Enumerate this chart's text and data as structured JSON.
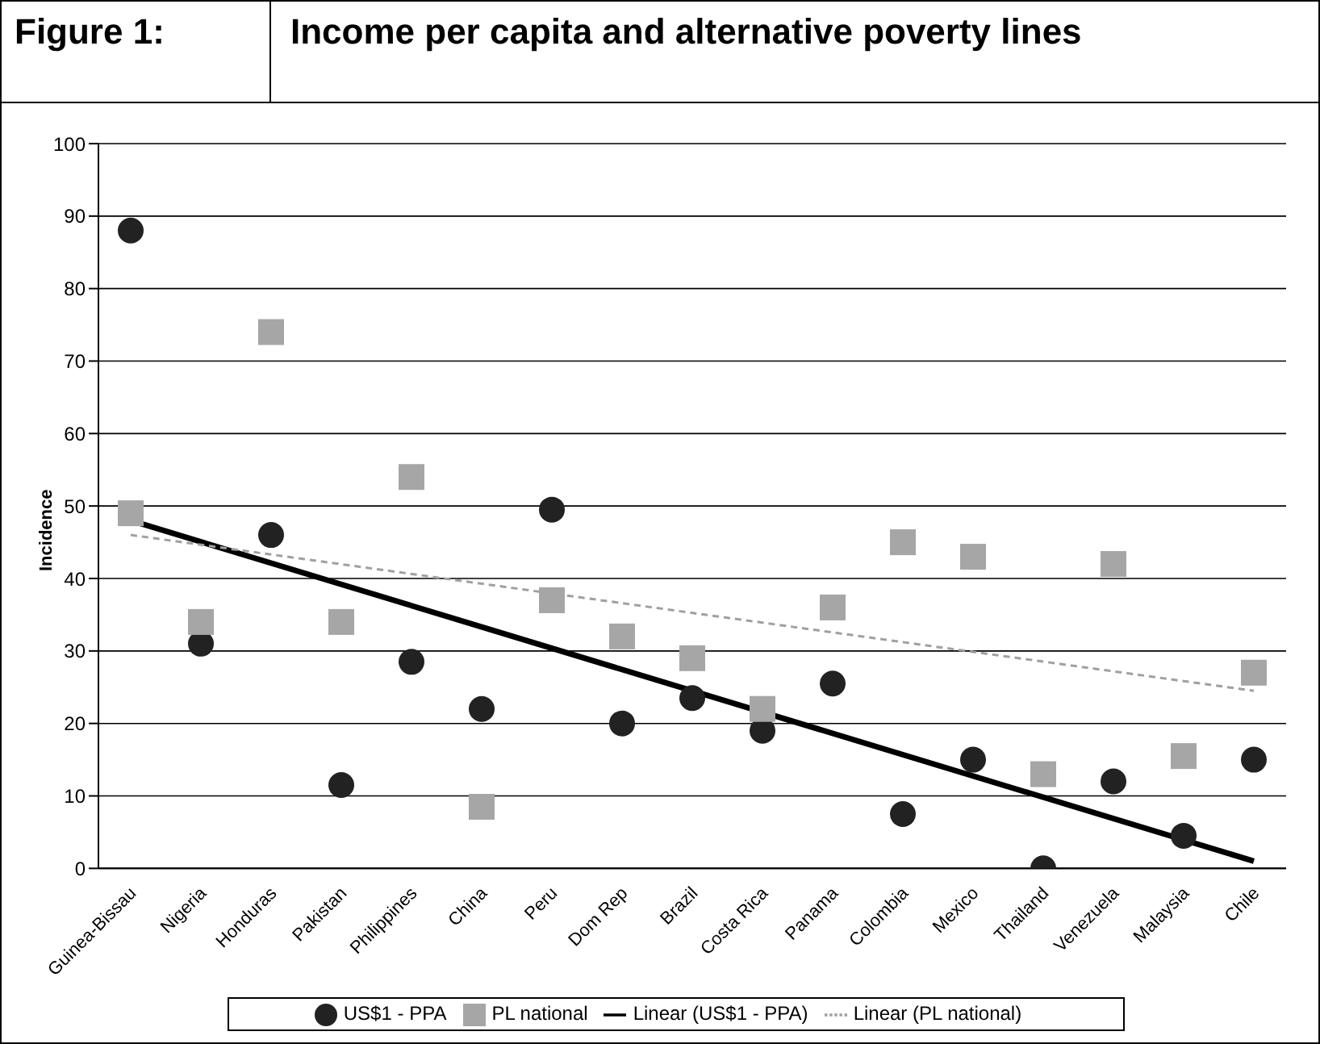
{
  "chart_data": {
    "type": "scatter",
    "title": "Income per capita and alternative poverty lines",
    "annotations": [
      "Figure 1:"
    ],
    "ylabel": "Incidence",
    "categories": [
      "Guinea-Bissau",
      "Nigeria",
      "Honduras",
      "Pakistan",
      "Philippines",
      "China",
      "Peru",
      "Dom Rep",
      "Brazil",
      "Costa Rica",
      "Panama",
      "Colombia",
      "Mexico",
      "Thailand",
      "Venezuela",
      "Malaysia",
      "Chile"
    ],
    "series": [
      {
        "name": "US$1 - PPA",
        "marker": "circle",
        "color": "#222222",
        "values": [
          88,
          31,
          46,
          11.5,
          28.5,
          22,
          49.5,
          20,
          23.5,
          19,
          25.5,
          7.5,
          15,
          0,
          12,
          4.5,
          15
        ]
      },
      {
        "name": "PL national",
        "marker": "square",
        "color": "#a6a6a6",
        "values": [
          49,
          34,
          74,
          34,
          54,
          8.5,
          37,
          32,
          29,
          22,
          36,
          45,
          43,
          13,
          42,
          15.5,
          27
        ]
      },
      {
        "name": "Linear (US$1 - PPA)",
        "type": "line",
        "marker": "none",
        "line_style": "solid",
        "color": "#000000",
        "values": [
          48,
          null,
          null,
          null,
          null,
          null,
          null,
          null,
          null,
          null,
          null,
          null,
          null,
          null,
          null,
          null,
          1
        ]
      },
      {
        "name": "Linear (PL national)",
        "type": "line",
        "marker": "none",
        "line_style": "dashed",
        "color": "#a0a0a0",
        "values": [
          46,
          null,
          null,
          null,
          null,
          null,
          null,
          null,
          null,
          null,
          null,
          null,
          null,
          null,
          null,
          null,
          24.5
        ]
      }
    ],
    "ylim": [
      0,
      100
    ],
    "yticks": [
      0,
      10,
      20,
      30,
      40,
      50,
      60,
      70,
      80,
      90,
      100
    ],
    "grid": "y",
    "legend": "bottom"
  }
}
